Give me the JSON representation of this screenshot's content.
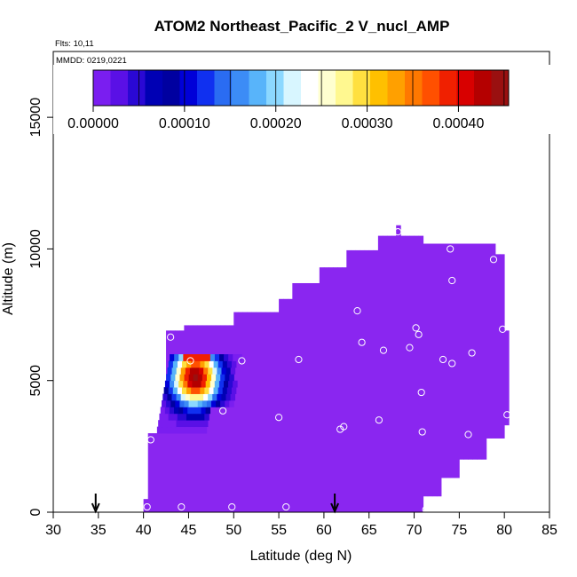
{
  "chart_data": {
    "type": "heatmap",
    "title": "ATOM2 Northeast_Pacific_2 V_nucl_AMP",
    "flights_label": "Flts: 10,11",
    "mmdd_label": "MMDD: 0219,0221",
    "xlabel": "Latitude (deg N)",
    "ylabel": "Altitude (m)",
    "xlim": [
      30,
      85
    ],
    "ylim": [
      0,
      17500
    ],
    "x_ticks": [
      30,
      35,
      40,
      45,
      50,
      55,
      60,
      65,
      70,
      75,
      80,
      85
    ],
    "y_ticks": [
      0,
      5000,
      10000,
      15000
    ],
    "colorbar": {
      "range": [
        0,
        0.000455
      ],
      "ticks": [
        "0.00000",
        "0.00010",
        "0.00020",
        "0.00030",
        "0.00040"
      ],
      "tick_values": [
        0,
        0.0001,
        0.0002,
        0.0003,
        0.0004
      ],
      "colors": [
        "#7a1ef0",
        "#5a10e6",
        "#2a08d4",
        "#0000b4",
        "#0000a0",
        "#0000d8",
        "#1030f0",
        "#2a6cf2",
        "#3c8cf6",
        "#58b4fa",
        "#8cd8ff",
        "#d8f6ff",
        "#ffffff",
        "#ffffd0",
        "#fff890",
        "#ffe040",
        "#ffc000",
        "#ffa000",
        "#ff7800",
        "#ff5000",
        "#f02000",
        "#d80000",
        "#b40000",
        "#9a1010"
      ],
      "background_color": "#8a26f0"
    },
    "filled_region_latitude_bounds": [
      40.5,
      80.5
    ],
    "filled_region_altitude_bounds": [
      0,
      10900
    ],
    "nucleation_plume": {
      "latitude_range": [
        41.5,
        50.5
      ],
      "altitude_range": [
        3000,
        5950
      ],
      "peak_latitude": 45.5,
      "peak_altitude": 5000,
      "peak_value": 0.00045
    },
    "flight_markers_latitude": [
      34.7,
      61.2
    ],
    "sample_points": [
      {
        "lat": 68.2,
        "alt": 10650
      },
      {
        "lat": 74.0,
        "alt": 10000
      },
      {
        "lat": 78.8,
        "alt": 9600
      },
      {
        "lat": 74.2,
        "alt": 8800
      },
      {
        "lat": 63.7,
        "alt": 7650
      },
      {
        "lat": 70.2,
        "alt": 7000
      },
      {
        "lat": 70.5,
        "alt": 6750
      },
      {
        "lat": 79.8,
        "alt": 6950
      },
      {
        "lat": 43.0,
        "alt": 6650
      },
      {
        "lat": 64.2,
        "alt": 6450
      },
      {
        "lat": 66.6,
        "alt": 6150
      },
      {
        "lat": 69.5,
        "alt": 6250
      },
      {
        "lat": 76.4,
        "alt": 6050
      },
      {
        "lat": 73.2,
        "alt": 5800
      },
      {
        "lat": 74.2,
        "alt": 5650
      },
      {
        "lat": 57.2,
        "alt": 5800
      },
      {
        "lat": 50.9,
        "alt": 5750
      },
      {
        "lat": 45.2,
        "alt": 5750
      },
      {
        "lat": 70.8,
        "alt": 4550
      },
      {
        "lat": 48.8,
        "alt": 3850
      },
      {
        "lat": 55.0,
        "alt": 3600
      },
      {
        "lat": 66.1,
        "alt": 3500
      },
      {
        "lat": 62.2,
        "alt": 3250
      },
      {
        "lat": 61.8,
        "alt": 3150
      },
      {
        "lat": 80.3,
        "alt": 3700
      },
      {
        "lat": 70.9,
        "alt": 3050
      },
      {
        "lat": 76.0,
        "alt": 2950
      },
      {
        "lat": 40.8,
        "alt": 2750
      },
      {
        "lat": 40.4,
        "alt": 200
      },
      {
        "lat": 44.2,
        "alt": 200
      },
      {
        "lat": 49.8,
        "alt": 200
      },
      {
        "lat": 55.8,
        "alt": 200
      },
      {
        "lat": 71.3,
        "alt": 100
      }
    ]
  }
}
